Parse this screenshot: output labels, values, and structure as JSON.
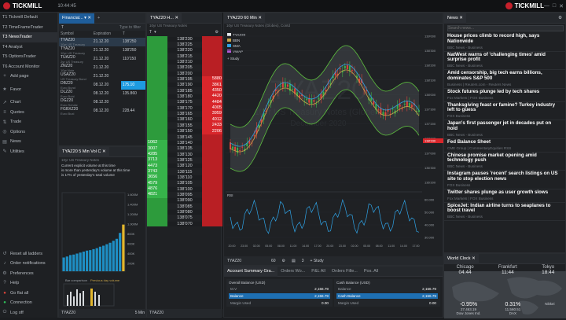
{
  "titlebar": {
    "brand_left": "TICKMILL",
    "clock": "10:44:45",
    "brand_right": "TICKMILL"
  },
  "sidebar": {
    "top_items": [
      {
        "label": "T1 Tickmill Default",
        "icon": "t1"
      },
      {
        "label": "T2 TimeFrameTrader",
        "icon": "t2"
      },
      {
        "label": "T3 NewsTrader",
        "icon": "t3"
      },
      {
        "label": "T4 Analyst",
        "icon": "t4"
      },
      {
        "label": "T5 OptionsTrader",
        "icon": "t5"
      },
      {
        "label": "T6 Account Monitor",
        "icon": "t6"
      },
      {
        "label": "Add page",
        "icon": "plus-icon"
      },
      {
        "label": "Favor",
        "icon": "star-icon"
      },
      {
        "label": "Chart",
        "icon": "chart-icon"
      },
      {
        "label": "Quotes",
        "icon": "quotes-icon"
      },
      {
        "label": "Trade",
        "icon": "trade-icon"
      },
      {
        "label": "Options",
        "icon": "options-icon"
      },
      {
        "label": "News",
        "icon": "news-icon"
      },
      {
        "label": "Utilities",
        "icon": "utilities-icon"
      }
    ],
    "bottom_items": [
      {
        "label": "Reset all ladders",
        "icon": "reset-icon"
      },
      {
        "label": "Order notifications",
        "icon": "bell-icon"
      },
      {
        "label": "Preferences",
        "icon": "gear-icon"
      },
      {
        "label": "Help",
        "icon": "help-icon"
      },
      {
        "label": "Go flat all",
        "icon": "flat-icon"
      },
      {
        "label": "Connection",
        "icon": "connection-icon"
      },
      {
        "label": "Log off",
        "icon": "logoff-icon"
      }
    ]
  },
  "watchlist": {
    "tab": "Financial...",
    "toolbar": {
      "symbol": "T",
      "filter": "Type to filter"
    },
    "headers": [
      "Symbol",
      "Expiration",
      "T"
    ],
    "rows": [
      {
        "symbol": "TYAZ20",
        "sub": "10yr US Treasury",
        "exp": "21.12.20",
        "t": "138'250"
      },
      {
        "symbol": "TYAZ20",
        "sub": "10yr US Treasury",
        "exp": "21.12.20",
        "t": "138'250"
      },
      {
        "symbol": "TUAZ20",
        "sub": "2yr US Treasury",
        "exp": "21.12.20",
        "t": "110'150"
      },
      {
        "symbol": "ZNZ20",
        "sub": "10yr Note",
        "exp": "21.12.20",
        "t": ""
      },
      {
        "symbol": "USAZ20",
        "sub": "US Treasury Bond",
        "exp": "21.12.20",
        "t": ""
      },
      {
        "symbol": "DBZ20",
        "sub": "Euro Bund",
        "exp": "08.12.20",
        "t": "175.10"
      },
      {
        "symbol": "DLZ20",
        "sub": "Euro Bobl",
        "exp": "08.12.20",
        "t": "135.860"
      },
      {
        "symbol": "DGZ20",
        "sub": "Euro Schatz",
        "exp": "08.12.20",
        "t": ""
      },
      {
        "symbol": "FGBXZ20",
        "sub": "Euro Buxl",
        "exp": "08.12.20",
        "t": "228.44"
      }
    ]
  },
  "volpanel": {
    "tab": "TYAZ20 5 Min Vol C",
    "sub": "10yr US Treasury Notes",
    "notes": [
      "Current explicit volume at this time",
      "is more than yesterday's volume at this time",
      "is 17% of yesterday's total volume"
    ],
    "yticks": [
      "1.600M",
      "1.400M",
      "1.200M",
      "1.000M",
      "800K",
      "600K",
      "400K",
      "200K"
    ],
    "bottom_tab": "TYAZ20",
    "bottom_btn": "5 Min",
    "legend": [
      "Bar comparison",
      "Previous day volume"
    ],
    "chart_data": {
      "type": "bar",
      "categories": [
        "b1",
        "b2",
        "b3",
        "b4",
        "b5",
        "b6",
        "b7",
        "b8",
        "b9",
        "b10",
        "b11",
        "b12",
        "b13",
        "b14",
        "b15",
        "b16",
        "b17",
        "b18",
        "b19"
      ],
      "values": [
        0.28,
        0.3,
        0.33,
        0.34,
        0.36,
        0.38,
        0.4,
        0.42,
        0.43,
        0.45,
        0.47,
        0.5,
        0.52,
        0.55,
        0.58,
        0.62,
        0.66,
        0.78,
        0.95
      ],
      "ylim": [
        0,
        1.6
      ]
    }
  },
  "dom": {
    "tab": "TYAZ20 H...",
    "sub": "10yr US Treasury Notes",
    "toolbar": "T",
    "rows": [
      {
        "bid": "",
        "px": "138'230",
        "ask": ""
      },
      {
        "bid": "",
        "px": "138'225",
        "ask": ""
      },
      {
        "bid": "",
        "px": "138'220",
        "ask": ""
      },
      {
        "bid": "",
        "px": "138'215",
        "ask": ""
      },
      {
        "bid": "",
        "px": "138'210",
        "ask": ""
      },
      {
        "bid": "",
        "px": "138'205",
        "ask": ""
      },
      {
        "bid": "",
        "px": "138'200",
        "ask": ""
      },
      {
        "bid": "",
        "px": "138'195",
        "ask": "5880"
      },
      {
        "bid": "",
        "px": "138'190",
        "ask": "3861"
      },
      {
        "bid": "",
        "px": "138'185",
        "ask": "4350"
      },
      {
        "bid": "",
        "px": "138'180",
        "ask": "4420"
      },
      {
        "bid": "",
        "px": "138'175",
        "ask": "4484"
      },
      {
        "bid": "",
        "px": "138'170",
        "ask": "4005"
      },
      {
        "bid": "",
        "px": "138'165",
        "ask": "3959"
      },
      {
        "bid": "",
        "px": "138'160",
        "ask": "4012"
      },
      {
        "bid": "",
        "px": "138'155",
        "ask": "2433"
      },
      {
        "bid": "",
        "px": "138'150",
        "ask": "2206"
      },
      {
        "bid": "",
        "px": "138'145",
        "ask": ""
      },
      {
        "bid": "1062",
        "px": "138'140",
        "ask": ""
      },
      {
        "bid": "3007",
        "px": "138'135",
        "ask": ""
      },
      {
        "bid": "4285",
        "px": "138'130",
        "ask": ""
      },
      {
        "bid": "3713",
        "px": "138'125",
        "ask": ""
      },
      {
        "bid": "4473",
        "px": "138'120",
        "ask": ""
      },
      {
        "bid": "3743",
        "px": "138'115",
        "ask": ""
      },
      {
        "bid": "3656",
        "px": "138'110",
        "ask": ""
      },
      {
        "bid": "4579",
        "px": "138'105",
        "ask": ""
      },
      {
        "bid": "4876",
        "px": "138'100",
        "ask": ""
      },
      {
        "bid": "4821",
        "px": "138'095",
        "ask": ""
      },
      {
        "bid": "",
        "px": "138'090",
        "ask": ""
      },
      {
        "bid": "",
        "px": "138'085",
        "ask": ""
      },
      {
        "bid": "",
        "px": "138'080",
        "ask": ""
      },
      {
        "bid": "",
        "px": "138'075",
        "ask": ""
      },
      {
        "bid": "",
        "px": "138'070",
        "ask": ""
      }
    ],
    "bottom_tab": "TYAZ20"
  },
  "chart": {
    "tab": "TYAZ20 60 Min",
    "sub": "10yr US Treasury Notes (Globex), Contd",
    "watermark_big": "TYAZ20",
    "watermark_line": "10yr US Treasury Notes (Globex)",
    "watermark_date": "December 2020",
    "legend": [
      {
        "name": "TYAZ20",
        "color": "#e6e9ec"
      },
      {
        "name": "BBN",
        "color": "#c6a34a"
      },
      {
        "name": "SMA",
        "color": "#2fa3e6"
      },
      {
        "name": "VWAP",
        "color": "#b45ad8"
      }
    ],
    "study_label": "+ Study",
    "rsi_label": "RSI",
    "price_ticks": [
      "139'000",
      "138'300",
      "138'200",
      "138'100",
      "138'000",
      "137'300",
      "137'200",
      "137'100",
      "137'000",
      "136'300",
      "136'200"
    ],
    "rsi_ticks": [
      "60.000",
      "50.000",
      "40.000",
      "30.000"
    ],
    "x_ticks": [
      "20.00",
      "23.00",
      "02.00",
      "05.00",
      "08.00",
      "11.00",
      "14.00",
      "17.00",
      "20.00",
      "23.00",
      "02.00",
      "05.00",
      "08.00",
      "11.00",
      "14.00",
      "17.00"
    ],
    "last_price": "138'230",
    "bottom_symbol": "TYAZ20",
    "bottom_period": "60",
    "bottom_study": "Study",
    "bottom_extra": "3"
  },
  "account": {
    "tabs": [
      "Account Summary Gra...",
      "Orders Wo...",
      "P&L All",
      "Orders Fille...",
      "Pos. All"
    ],
    "cards": [
      {
        "title": "Overall Balance (USD)",
        "rows": [
          [
            "M.V",
            "2,156.79"
          ],
          [
            "Balance",
            "2,156.79"
          ],
          [
            "Margin Used",
            "0.00"
          ]
        ]
      },
      {
        "title": "Cash Balance (USD)",
        "rows": [
          [
            "Balance",
            "2,156.79"
          ],
          [
            "Cash Balance",
            "2,156.79"
          ],
          [
            "Margin Used",
            "0.00"
          ]
        ]
      }
    ]
  },
  "news": {
    "tab": "News",
    "search_placeholder": "Search news...",
    "items": [
      {
        "h": "House prices climb to record high, says Nationwide",
        "s": "BBC News - Business"
      },
      {
        "h": "NatWest warns of 'challenging times' amid surprise profit",
        "s": "BBC News - Business"
      },
      {
        "h": "Amid censorship, big tech earns billions, dominates S&P 500",
        "s": "Business | Reuters.com - Reuters News"
      },
      {
        "h": "Stock futures plunge led by tech shares",
        "s": "Fox Markets | FOX Business"
      },
      {
        "h": "Thanksgiving feast or famine? Turkey industry left to guess",
        "s": "FOX Business"
      },
      {
        "h": "Japan's first passenger jet in decades put on hold",
        "s": "BBC News - Business"
      },
      {
        "h": "Fed Balance Sheet",
        "s": "CME Group | CommentaryEquities RSS"
      },
      {
        "h": "Chinese promise market opening amid technology push",
        "s": "BBC News - Business"
      },
      {
        "h": "Instagram pauses 'recent' search listings on US site to stop election news",
        "s": "FOX Business"
      },
      {
        "h": "Twitter shares plunge as user growth slows",
        "s": "Fox Markets | FOX Business"
      },
      {
        "h": "SpiceJet: Indian airline turns to seaplanes to boost travel",
        "s": "BBC News - Business"
      }
    ]
  },
  "worldclock": {
    "tab": "World Clock",
    "cities": [
      {
        "name": "Chicago",
        "time": "04:44"
      },
      {
        "name": "Frankfurt",
        "time": "11:44"
      },
      {
        "name": "Tokyo",
        "time": "18:44"
      }
    ],
    "indices": [
      {
        "name": "Dow Jones Ind.",
        "chg": "-0.95%",
        "val": "27,463.19"
      },
      {
        "name": "DAX",
        "chg": "0.31%",
        "val": "11,560.51"
      },
      {
        "name": "Nikkei",
        "chg": "",
        "val": ""
      }
    ]
  }
}
